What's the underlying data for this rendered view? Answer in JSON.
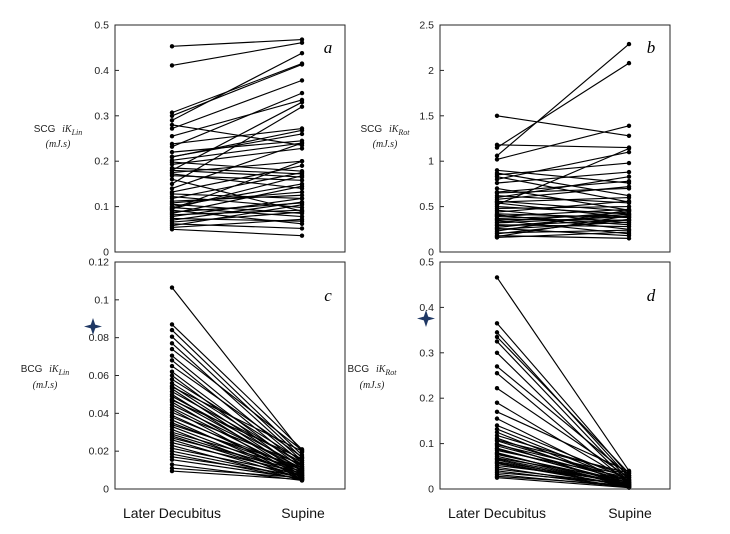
{
  "figure": {
    "categories": [
      "Later Decubitus",
      "Supine"
    ],
    "star_color": "#1f3864",
    "line_color": "#000000"
  },
  "chart_data": [
    {
      "id": "a",
      "type": "line",
      "panel_letter": "a",
      "ylabel_prefix": "SCG",
      "ylabel_symbol": "iK",
      "ylabel_sub": "Lin",
      "ylabel_unit": "(mJ.s)",
      "ylim": [
        0,
        0.5
      ],
      "yticks": [
        "0",
        "0.1",
        "0.2",
        "0.3",
        "0.4",
        "0.5"
      ],
      "ytick_values": [
        0,
        0.1,
        0.2,
        0.3,
        0.4,
        0.5
      ],
      "categories": [
        "Later Decubitus",
        "Supine"
      ],
      "starred": false,
      "pairs": [
        [
          0.453,
          0.468
        ],
        [
          0.411,
          0.461
        ],
        [
          0.307,
          0.415
        ],
        [
          0.3,
          0.413
        ],
        [
          0.29,
          0.438
        ],
        [
          0.28,
          0.235
        ],
        [
          0.272,
          0.378
        ],
        [
          0.255,
          0.335
        ],
        [
          0.238,
          0.272
        ],
        [
          0.232,
          0.35
        ],
        [
          0.22,
          0.245
        ],
        [
          0.209,
          0.268
        ],
        [
          0.202,
          0.24
        ],
        [
          0.198,
          0.178
        ],
        [
          0.193,
          0.228
        ],
        [
          0.185,
          0.172
        ],
        [
          0.18,
          0.165
        ],
        [
          0.175,
          0.2
        ],
        [
          0.172,
          0.14
        ],
        [
          0.168,
          0.158
        ],
        [
          0.15,
          0.32
        ],
        [
          0.132,
          0.19
        ],
        [
          0.128,
          0.118
        ],
        [
          0.122,
          0.098
        ],
        [
          0.118,
          0.175
        ],
        [
          0.112,
          0.125
        ],
        [
          0.108,
          0.132
        ],
        [
          0.105,
          0.085
        ],
        [
          0.1,
          0.15
        ],
        [
          0.098,
          0.078
        ],
        [
          0.095,
          0.168
        ],
        [
          0.092,
          0.062
        ],
        [
          0.088,
          0.108
        ],
        [
          0.085,
          0.145
        ],
        [
          0.082,
          0.092
        ],
        [
          0.078,
          0.118
        ],
        [
          0.074,
          0.068
        ],
        [
          0.07,
          0.11
        ],
        [
          0.066,
          0.088
        ],
        [
          0.062,
          0.052
        ],
        [
          0.058,
          0.104
        ],
        [
          0.054,
          0.072
        ],
        [
          0.05,
          0.036
        ],
        [
          0.21,
          0.26
        ],
        [
          0.18,
          0.33
        ],
        [
          0.16,
          0.09
        ],
        [
          0.14,
          0.24
        ],
        [
          0.095,
          0.2
        ]
      ]
    },
    {
      "id": "b",
      "type": "line",
      "panel_letter": "b",
      "ylabel_prefix": "SCG",
      "ylabel_symbol": "iK",
      "ylabel_sub": "Rot",
      "ylabel_unit": "(mJ.s)",
      "ylim": [
        0,
        2.5
      ],
      "yticks": [
        "0",
        "0.5",
        "1",
        "1.5",
        "2",
        "2.5"
      ],
      "ytick_values": [
        0,
        0.5,
        1,
        1.5,
        2,
        2.5
      ],
      "categories": [
        "Later Decubitus",
        "Supine"
      ],
      "starred": false,
      "pairs": [
        [
          1.5,
          1.28
        ],
        [
          1.18,
          1.15
        ],
        [
          1.15,
          2.08
        ],
        [
          1.06,
          2.29
        ],
        [
          1.02,
          1.39
        ],
        [
          0.87,
          0.62
        ],
        [
          0.85,
          0.98
        ],
        [
          0.83,
          0.55
        ],
        [
          0.8,
          1.1
        ],
        [
          0.76,
          0.88
        ],
        [
          0.7,
          0.46
        ],
        [
          0.66,
          0.78
        ],
        [
          0.62,
          0.54
        ],
        [
          0.6,
          0.83
        ],
        [
          0.58,
          0.72
        ],
        [
          0.56,
          0.45
        ],
        [
          0.54,
          0.38
        ],
        [
          0.52,
          1.14
        ],
        [
          0.5,
          0.42
        ],
        [
          0.48,
          0.5
        ],
        [
          0.46,
          0.32
        ],
        [
          0.44,
          0.56
        ],
        [
          0.42,
          0.38
        ],
        [
          0.41,
          0.25
        ],
        [
          0.4,
          0.3
        ],
        [
          0.39,
          0.47
        ],
        [
          0.37,
          0.41
        ],
        [
          0.36,
          0.35
        ],
        [
          0.35,
          0.2
        ],
        [
          0.33,
          0.44
        ],
        [
          0.32,
          0.39
        ],
        [
          0.3,
          0.28
        ],
        [
          0.29,
          0.35
        ],
        [
          0.27,
          0.42
        ],
        [
          0.26,
          0.18
        ],
        [
          0.25,
          0.33
        ],
        [
          0.23,
          0.46
        ],
        [
          0.21,
          0.24
        ],
        [
          0.2,
          0.36
        ],
        [
          0.18,
          0.15
        ],
        [
          0.17,
          0.4
        ],
        [
          0.16,
          0.22
        ],
        [
          0.65,
          0.7
        ],
        [
          0.9,
          0.76
        ],
        [
          0.55,
          0.6
        ]
      ]
    },
    {
      "id": "c",
      "type": "line",
      "panel_letter": "c",
      "ylabel_prefix": "BCG",
      "ylabel_symbol": "iK",
      "ylabel_sub": "Lin",
      "ylabel_unit": "(mJ.s)",
      "ylim": [
        0,
        0.12
      ],
      "yticks": [
        "0",
        "0.02",
        "0.04",
        "0.06",
        "0.08",
        "0.1",
        "0.12"
      ],
      "ytick_values": [
        0,
        0.02,
        0.04,
        0.06,
        0.08,
        0.1,
        0.12
      ],
      "categories": [
        "Later Decubitus",
        "Supine"
      ],
      "starred": true,
      "pairs": [
        [
          0.1065,
          0.0195
        ],
        [
          0.087,
          0.021
        ],
        [
          0.084,
          0.018
        ],
        [
          0.0805,
          0.0165
        ],
        [
          0.077,
          0.015
        ],
        [
          0.074,
          0.0205
        ],
        [
          0.0705,
          0.014
        ],
        [
          0.068,
          0.012
        ],
        [
          0.065,
          0.017
        ],
        [
          0.062,
          0.011
        ],
        [
          0.06,
          0.009
        ],
        [
          0.058,
          0.015
        ],
        [
          0.056,
          0.013
        ],
        [
          0.0545,
          0.01
        ],
        [
          0.053,
          0.008
        ],
        [
          0.0515,
          0.014
        ],
        [
          0.05,
          0.007
        ],
        [
          0.049,
          0.012
        ],
        [
          0.0475,
          0.0095
        ],
        [
          0.046,
          0.006
        ],
        [
          0.0445,
          0.011
        ],
        [
          0.043,
          0.0085
        ],
        [
          0.042,
          0.005
        ],
        [
          0.0405,
          0.013
        ],
        [
          0.039,
          0.0075
        ],
        [
          0.038,
          0.01
        ],
        [
          0.0365,
          0.006
        ],
        [
          0.035,
          0.009
        ],
        [
          0.034,
          0.0115
        ],
        [
          0.033,
          0.007
        ],
        [
          0.0315,
          0.005
        ],
        [
          0.03,
          0.0105
        ],
        [
          0.029,
          0.008
        ],
        [
          0.028,
          0.0065
        ],
        [
          0.027,
          0.0095
        ],
        [
          0.026,
          0.0055
        ],
        [
          0.0245,
          0.0085
        ],
        [
          0.023,
          0.0045
        ],
        [
          0.0215,
          0.0075
        ],
        [
          0.02,
          0.006
        ],
        [
          0.0185,
          0.005
        ],
        [
          0.017,
          0.007
        ],
        [
          0.0155,
          0.0055
        ],
        [
          0.013,
          0.0045
        ],
        [
          0.011,
          0.006
        ],
        [
          0.0095,
          0.005
        ],
        [
          0.054,
          0.02
        ],
        [
          0.047,
          0.016
        ]
      ]
    },
    {
      "id": "d",
      "type": "line",
      "panel_letter": "d",
      "ylabel_prefix": "BCG",
      "ylabel_symbol": "iK",
      "ylabel_sub": "Rot",
      "ylabel_unit": "(mJ.s)",
      "ylim": [
        0,
        0.5
      ],
      "yticks": [
        "0",
        "0.1",
        "0.2",
        "0.3",
        "0.4",
        "0.5"
      ],
      "ytick_values": [
        0,
        0.1,
        0.2,
        0.3,
        0.4,
        0.5
      ],
      "categories": [
        "Later Decubitus",
        "Supine"
      ],
      "starred": true,
      "pairs": [
        [
          0.466,
          0.04
        ],
        [
          0.365,
          0.03
        ],
        [
          0.345,
          0.025
        ],
        [
          0.335,
          0.035
        ],
        [
          0.325,
          0.02
        ],
        [
          0.3,
          0.015
        ],
        [
          0.27,
          0.03
        ],
        [
          0.255,
          0.012
        ],
        [
          0.222,
          0.025
        ],
        [
          0.19,
          0.018
        ],
        [
          0.17,
          0.038
        ],
        [
          0.155,
          0.01
        ],
        [
          0.14,
          0.022
        ],
        [
          0.132,
          0.015
        ],
        [
          0.125,
          0.008
        ],
        [
          0.118,
          0.03
        ],
        [
          0.112,
          0.012
        ],
        [
          0.106,
          0.02
        ],
        [
          0.1,
          0.006
        ],
        [
          0.095,
          0.018
        ],
        [
          0.09,
          0.01
        ],
        [
          0.085,
          0.025
        ],
        [
          0.08,
          0.005
        ],
        [
          0.076,
          0.015
        ],
        [
          0.072,
          0.008
        ],
        [
          0.068,
          0.02
        ],
        [
          0.064,
          0.004
        ],
        [
          0.06,
          0.012
        ],
        [
          0.056,
          0.006
        ],
        [
          0.052,
          0.016
        ],
        [
          0.048,
          0.003
        ],
        [
          0.044,
          0.01
        ],
        [
          0.04,
          0.005
        ],
        [
          0.036,
          0.012
        ],
        [
          0.032,
          0.004
        ],
        [
          0.028,
          0.008
        ],
        [
          0.025,
          0.003
        ],
        [
          0.108,
          0.035
        ],
        [
          0.098,
          0.028
        ],
        [
          0.088,
          0.014
        ],
        [
          0.078,
          0.009
        ],
        [
          0.066,
          0.01
        ],
        [
          0.058,
          0.007
        ]
      ]
    }
  ]
}
